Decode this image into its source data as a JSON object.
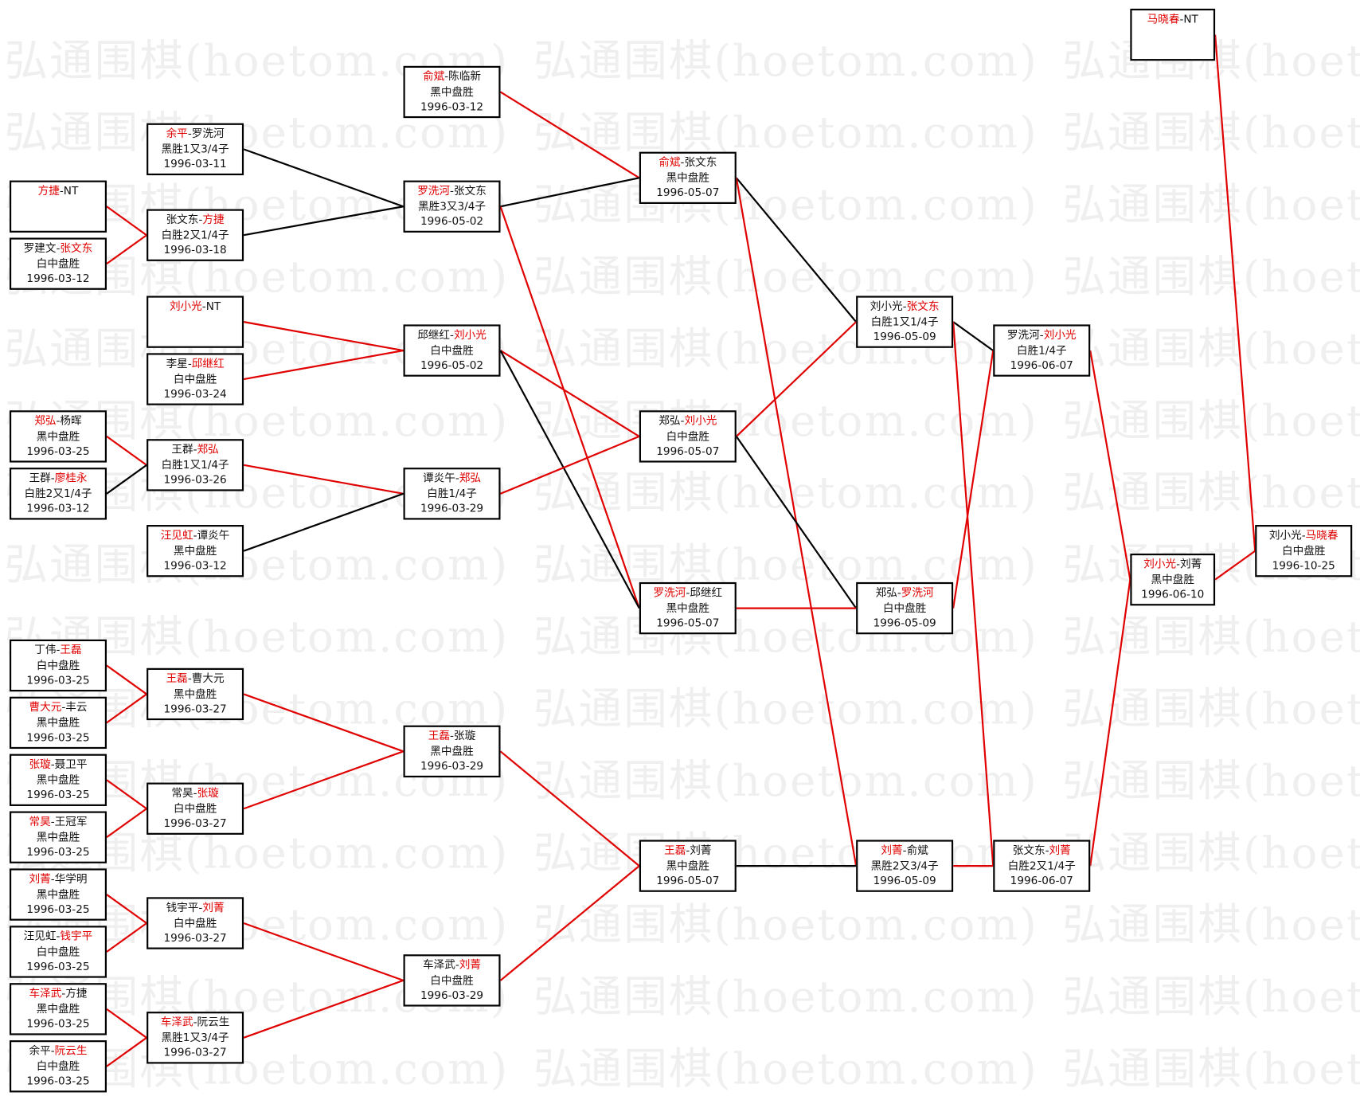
{
  "watermark": "弘通围棋(hoetom.com)",
  "colors": {
    "winner": "#e00000",
    "red_line": "#e00000",
    "black_line": "#000000"
  },
  "matches": [
    {
      "p1": "方捷",
      "p2": "NT",
      "winner": 1,
      "result": "",
      "date": ""
    },
    {
      "p1": "罗建文",
      "p2": "张文东",
      "winner": 2,
      "result": "白中盘胜",
      "date": "1996-03-12"
    },
    {
      "p1": "郑弘",
      "p2": "杨晖",
      "winner": 1,
      "result": "黑中盘胜",
      "date": "1996-03-25"
    },
    {
      "p1": "王群",
      "p2": "廖桂永",
      "winner": 2,
      "result": "白胜2又1/4子",
      "date": "1996-03-12"
    },
    {
      "p1": "丁伟",
      "p2": "王磊",
      "winner": 2,
      "result": "白中盘胜",
      "date": "1996-03-25"
    },
    {
      "p1": "曹大元",
      "p2": "丰云",
      "winner": 1,
      "result": "黑中盘胜",
      "date": "1996-03-25"
    },
    {
      "p1": "张璇",
      "p2": "聂卫平",
      "winner": 1,
      "result": "黑中盘胜",
      "date": "1996-03-25"
    },
    {
      "p1": "常昊",
      "p2": "王冠军",
      "winner": 1,
      "result": "黑中盘胜",
      "date": "1996-03-25"
    },
    {
      "p1": "刘菁",
      "p2": "华学明",
      "winner": 1,
      "result": "黑中盘胜",
      "date": "1996-03-25"
    },
    {
      "p1": "汪见虹",
      "p2": "钱宇平",
      "winner": 2,
      "result": "白中盘胜",
      "date": "1996-03-25"
    },
    {
      "p1": "车泽武",
      "p2": "方捷",
      "winner": 1,
      "result": "黑中盘胜",
      "date": "1996-03-25"
    },
    {
      "p1": "余平",
      "p2": "阮云生",
      "winner": 2,
      "result": "白中盘胜",
      "date": "1996-03-25"
    },
    {
      "p1": "余平",
      "p2": "罗洗河",
      "winner": 1,
      "result": "黑胜1又3/4子",
      "date": "1996-03-11"
    },
    {
      "p1": "张文东",
      "p2": "方捷",
      "winner": 2,
      "result": "白胜2又1/4子",
      "date": "1996-03-18"
    },
    {
      "p1": "刘小光",
      "p2": "NT",
      "winner": 1,
      "result": "",
      "date": ""
    },
    {
      "p1": "李星",
      "p2": "邱继红",
      "winner": 2,
      "result": "白中盘胜",
      "date": "1996-03-24"
    },
    {
      "p1": "王群",
      "p2": "郑弘",
      "winner": 2,
      "result": "白胜1又1/4子",
      "date": "1996-03-26"
    },
    {
      "p1": "汪见虹",
      "p2": "谭炎午",
      "winner": 1,
      "result": "黑中盘胜",
      "date": "1996-03-12"
    },
    {
      "p1": "王磊",
      "p2": "曹大元",
      "winner": 1,
      "result": "黑中盘胜",
      "date": "1996-03-27"
    },
    {
      "p1": "常昊",
      "p2": "张璇",
      "winner": 2,
      "result": "白中盘胜",
      "date": "1996-03-27"
    },
    {
      "p1": "钱宇平",
      "p2": "刘菁",
      "winner": 2,
      "result": "白中盘胜",
      "date": "1996-03-27"
    },
    {
      "p1": "车泽武",
      "p2": "阮云生",
      "winner": 1,
      "result": "黑胜1又3/4子",
      "date": "1996-03-27"
    },
    {
      "p1": "俞斌",
      "p2": "陈临新",
      "winner": 1,
      "result": "黑中盘胜",
      "date": "1996-03-12"
    },
    {
      "p1": "罗洗河",
      "p2": "张文东",
      "winner": 1,
      "result": "黑胜3又3/4子",
      "date": "1996-05-02"
    },
    {
      "p1": "邱继红",
      "p2": "刘小光",
      "winner": 2,
      "result": "白中盘胜",
      "date": "1996-05-02"
    },
    {
      "p1": "谭炎午",
      "p2": "郑弘",
      "winner": 2,
      "result": "白胜1/4子",
      "date": "1996-03-29"
    },
    {
      "p1": "王磊",
      "p2": "张璇",
      "winner": 1,
      "result": "黑中盘胜",
      "date": "1996-03-29"
    },
    {
      "p1": "车泽武",
      "p2": "刘菁",
      "winner": 2,
      "result": "白中盘胜",
      "date": "1996-03-29"
    },
    {
      "p1": "俞斌",
      "p2": "张文东",
      "winner": 1,
      "result": "黑中盘胜",
      "date": "1996-05-07"
    },
    {
      "p1": "郑弘",
      "p2": "刘小光",
      "winner": 2,
      "result": "白中盘胜",
      "date": "1996-05-07"
    },
    {
      "p1": "罗洗河",
      "p2": "邱继红",
      "winner": 1,
      "result": "黑中盘胜",
      "date": "1996-05-07"
    },
    {
      "p1": "王磊",
      "p2": "刘菁",
      "winner": 1,
      "result": "黑中盘胜",
      "date": "1996-05-07"
    },
    {
      "p1": "刘小光",
      "p2": "张文东",
      "winner": 2,
      "result": "白胜1又1/4子",
      "date": "1996-05-09"
    },
    {
      "p1": "郑弘",
      "p2": "罗洗河",
      "winner": 2,
      "result": "白中盘胜",
      "date": "1996-05-09"
    },
    {
      "p1": "刘菁",
      "p2": "俞斌",
      "winner": 1,
      "result": "黑胜2又3/4子",
      "date": "1996-05-09"
    },
    {
      "p1": "罗洗河",
      "p2": "刘小光",
      "winner": 2,
      "result": "白胜1/4子",
      "date": "1996-06-07"
    },
    {
      "p1": "张文东",
      "p2": "刘菁",
      "winner": 2,
      "result": "白胜2又1/4子",
      "date": "1996-06-07"
    },
    {
      "p1": "马晓春",
      "p2": "NT",
      "winner": 1,
      "result": "",
      "date": ""
    },
    {
      "p1": "刘小光",
      "p2": "刘菁",
      "winner": 1,
      "result": "黑中盘胜",
      "date": "1996-06-10"
    },
    {
      "p1": "刘小光",
      "p2": "马晓春",
      "winner": 2,
      "result": "白中盘胜",
      "date": "1996-10-25"
    }
  ],
  "links": [
    {
      "from": 0,
      "to": 13,
      "color": "red"
    },
    {
      "from": 1,
      "to": 13,
      "color": "red"
    },
    {
      "from": 12,
      "to": 23,
      "color": "black"
    },
    {
      "from": 13,
      "to": 23,
      "color": "black"
    },
    {
      "from": 14,
      "to": 24,
      "color": "red"
    },
    {
      "from": 15,
      "to": 24,
      "color": "red"
    },
    {
      "from": 2,
      "to": 16,
      "color": "red"
    },
    {
      "from": 3,
      "to": 16,
      "color": "black"
    },
    {
      "from": 16,
      "to": 25,
      "color": "red"
    },
    {
      "from": 17,
      "to": 25,
      "color": "black"
    },
    {
      "from": 22,
      "to": 28,
      "color": "red"
    },
    {
      "from": 23,
      "to": 28,
      "color": "black"
    },
    {
      "from": 23,
      "to": 30,
      "color": "red"
    },
    {
      "from": 24,
      "to": 29,
      "color": "red"
    },
    {
      "from": 24,
      "to": 30,
      "color": "black"
    },
    {
      "from": 25,
      "to": 29,
      "color": "red"
    },
    {
      "from": 28,
      "to": 32,
      "color": "black"
    },
    {
      "from": 28,
      "to": 34,
      "color": "red"
    },
    {
      "from": 29,
      "to": 32,
      "color": "red"
    },
    {
      "from": 29,
      "to": 33,
      "color": "black"
    },
    {
      "from": 30,
      "to": 33,
      "color": "red"
    },
    {
      "from": 32,
      "to": 35,
      "color": "black"
    },
    {
      "from": 32,
      "to": 36,
      "color": "red"
    },
    {
      "from": 33,
      "to": 35,
      "color": "red"
    },
    {
      "from": 31,
      "to": 34,
      "color": "black"
    },
    {
      "from": 34,
      "to": 36,
      "color": "red"
    },
    {
      "from": 35,
      "to": 38,
      "color": "red"
    },
    {
      "from": 36,
      "to": 38,
      "color": "red"
    },
    {
      "from": 37,
      "to": 39,
      "color": "red"
    },
    {
      "from": 38,
      "to": 39,
      "color": "red"
    },
    {
      "from": 4,
      "to": 18,
      "color": "red"
    },
    {
      "from": 5,
      "to": 18,
      "color": "red"
    },
    {
      "from": 6,
      "to": 19,
      "color": "red"
    },
    {
      "from": 7,
      "to": 19,
      "color": "red"
    },
    {
      "from": 8,
      "to": 20,
      "color": "red"
    },
    {
      "from": 9,
      "to": 20,
      "color": "red"
    },
    {
      "from": 10,
      "to": 21,
      "color": "red"
    },
    {
      "from": 11,
      "to": 21,
      "color": "red"
    },
    {
      "from": 18,
      "to": 26,
      "color": "red"
    },
    {
      "from": 19,
      "to": 26,
      "color": "red"
    },
    {
      "from": 20,
      "to": 27,
      "color": "red"
    },
    {
      "from": 21,
      "to": 27,
      "color": "red"
    },
    {
      "from": 26,
      "to": 31,
      "color": "red"
    },
    {
      "from": 27,
      "to": 31,
      "color": "red"
    }
  ]
}
